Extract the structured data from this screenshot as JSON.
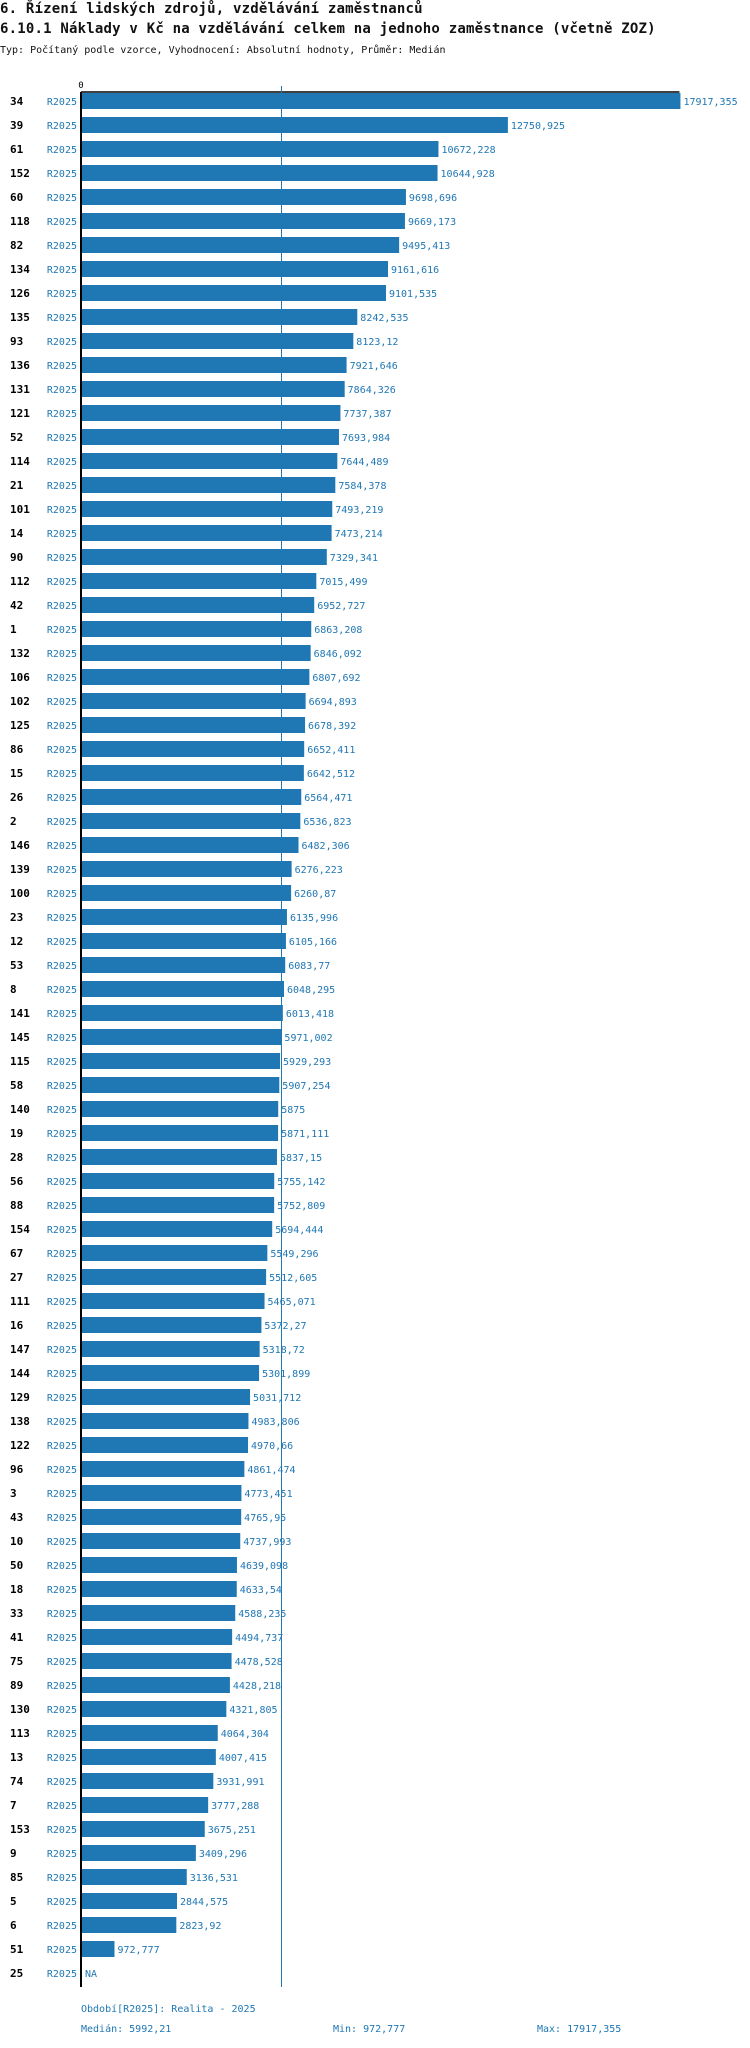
{
  "header": {
    "section_title": "6. Řízení lidských zdrojů, vzdělávání zaměstnanců",
    "indicator_title": "6.10.1 Náklady v Kč na vzdělávání celkem na jednoho zaměstnance (včetně ZOZ)",
    "meta": "Typ: Počítaný podle vzorce, Vyhodnocení: Absolutní hodnoty, Průměr: Medián"
  },
  "colors": {
    "bar": "#1f77b4",
    "axis": "#000000",
    "label": "#1f77b4",
    "id": "#000000"
  },
  "chart_data": {
    "type": "bar",
    "orientation": "horizontal",
    "axis_zero_label": "0",
    "median": 5992.21,
    "rows": [
      {
        "id": "34",
        "period": "R2025",
        "value": 17917.355,
        "label": "17917,355"
      },
      {
        "id": "39",
        "period": "R2025",
        "value": 12750.925,
        "label": "12750,925"
      },
      {
        "id": "61",
        "period": "R2025",
        "value": 10672.228,
        "label": "10672,228"
      },
      {
        "id": "152",
        "period": "R2025",
        "value": 10644.928,
        "label": "10644,928"
      },
      {
        "id": "60",
        "period": "R2025",
        "value": 9698.696,
        "label": "9698,696"
      },
      {
        "id": "118",
        "period": "R2025",
        "value": 9669.173,
        "label": "9669,173"
      },
      {
        "id": "82",
        "period": "R2025",
        "value": 9495.413,
        "label": "9495,413"
      },
      {
        "id": "134",
        "period": "R2025",
        "value": 9161.616,
        "label": "9161,616"
      },
      {
        "id": "126",
        "period": "R2025",
        "value": 9101.535,
        "label": "9101,535"
      },
      {
        "id": "135",
        "period": "R2025",
        "value": 8242.535,
        "label": "8242,535"
      },
      {
        "id": "93",
        "period": "R2025",
        "value": 8123.12,
        "label": "8123,12"
      },
      {
        "id": "136",
        "period": "R2025",
        "value": 7921.646,
        "label": "7921,646"
      },
      {
        "id": "131",
        "period": "R2025",
        "value": 7864.326,
        "label": "7864,326"
      },
      {
        "id": "121",
        "period": "R2025",
        "value": 7737.387,
        "label": "7737,387"
      },
      {
        "id": "52",
        "period": "R2025",
        "value": 7693.984,
        "label": "7693,984"
      },
      {
        "id": "114",
        "period": "R2025",
        "value": 7644.489,
        "label": "7644,489"
      },
      {
        "id": "21",
        "period": "R2025",
        "value": 7584.378,
        "label": "7584,378"
      },
      {
        "id": "101",
        "period": "R2025",
        "value": 7493.219,
        "label": "7493,219"
      },
      {
        "id": "14",
        "period": "R2025",
        "value": 7473.214,
        "label": "7473,214"
      },
      {
        "id": "90",
        "period": "R2025",
        "value": 7329.341,
        "label": "7329,341"
      },
      {
        "id": "112",
        "period": "R2025",
        "value": 7015.499,
        "label": "7015,499"
      },
      {
        "id": "42",
        "period": "R2025",
        "value": 6952.727,
        "label": "6952,727"
      },
      {
        "id": "1",
        "period": "R2025",
        "value": 6863.208,
        "label": "6863,208"
      },
      {
        "id": "132",
        "period": "R2025",
        "value": 6846.092,
        "label": "6846,092"
      },
      {
        "id": "106",
        "period": "R2025",
        "value": 6807.692,
        "label": "6807,692"
      },
      {
        "id": "102",
        "period": "R2025",
        "value": 6694.893,
        "label": "6694,893"
      },
      {
        "id": "125",
        "period": "R2025",
        "value": 6678.392,
        "label": "6678,392"
      },
      {
        "id": "86",
        "period": "R2025",
        "value": 6652.411,
        "label": "6652,411"
      },
      {
        "id": "15",
        "period": "R2025",
        "value": 6642.512,
        "label": "6642,512"
      },
      {
        "id": "26",
        "period": "R2025",
        "value": 6564.471,
        "label": "6564,471"
      },
      {
        "id": "2",
        "period": "R2025",
        "value": 6536.823,
        "label": "6536,823"
      },
      {
        "id": "146",
        "period": "R2025",
        "value": 6482.306,
        "label": "6482,306"
      },
      {
        "id": "139",
        "period": "R2025",
        "value": 6276.223,
        "label": "6276,223"
      },
      {
        "id": "100",
        "period": "R2025",
        "value": 6260.87,
        "label": "6260,87"
      },
      {
        "id": "23",
        "period": "R2025",
        "value": 6135.996,
        "label": "6135,996"
      },
      {
        "id": "12",
        "period": "R2025",
        "value": 6105.166,
        "label": "6105,166"
      },
      {
        "id": "53",
        "period": "R2025",
        "value": 6083.77,
        "label": "6083,77"
      },
      {
        "id": "8",
        "period": "R2025",
        "value": 6048.295,
        "label": "6048,295"
      },
      {
        "id": "141",
        "period": "R2025",
        "value": 6013.418,
        "label": "6013,418"
      },
      {
        "id": "145",
        "period": "R2025",
        "value": 5971.002,
        "label": "5971,002"
      },
      {
        "id": "115",
        "period": "R2025",
        "value": 5929.293,
        "label": "5929,293"
      },
      {
        "id": "58",
        "period": "R2025",
        "value": 5907.254,
        "label": "5907,254"
      },
      {
        "id": "140",
        "period": "R2025",
        "value": 5875,
        "label": "5875"
      },
      {
        "id": "19",
        "period": "R2025",
        "value": 5871.111,
        "label": "5871,111"
      },
      {
        "id": "28",
        "period": "R2025",
        "value": 5837.15,
        "label": "5837,15"
      },
      {
        "id": "56",
        "period": "R2025",
        "value": 5755.142,
        "label": "5755,142"
      },
      {
        "id": "88",
        "period": "R2025",
        "value": 5752.809,
        "label": "5752,809"
      },
      {
        "id": "154",
        "period": "R2025",
        "value": 5694.444,
        "label": "5694,444"
      },
      {
        "id": "67",
        "period": "R2025",
        "value": 5549.296,
        "label": "5549,296"
      },
      {
        "id": "27",
        "period": "R2025",
        "value": 5512.605,
        "label": "5512,605"
      },
      {
        "id": "111",
        "period": "R2025",
        "value": 5465.071,
        "label": "5465,071"
      },
      {
        "id": "16",
        "period": "R2025",
        "value": 5372.27,
        "label": "5372,27"
      },
      {
        "id": "147",
        "period": "R2025",
        "value": 5318.72,
        "label": "5318,72"
      },
      {
        "id": "144",
        "period": "R2025",
        "value": 5301.899,
        "label": "5301,899"
      },
      {
        "id": "129",
        "period": "R2025",
        "value": 5031.712,
        "label": "5031,712"
      },
      {
        "id": "138",
        "period": "R2025",
        "value": 4983.806,
        "label": "4983,806"
      },
      {
        "id": "122",
        "period": "R2025",
        "value": 4970.66,
        "label": "4970,66"
      },
      {
        "id": "96",
        "period": "R2025",
        "value": 4861.474,
        "label": "4861,474"
      },
      {
        "id": "3",
        "period": "R2025",
        "value": 4773.451,
        "label": "4773,451"
      },
      {
        "id": "43",
        "period": "R2025",
        "value": 4765.95,
        "label": "4765,95"
      },
      {
        "id": "10",
        "period": "R2025",
        "value": 4737.993,
        "label": "4737,993"
      },
      {
        "id": "50",
        "period": "R2025",
        "value": 4639.098,
        "label": "4639,098"
      },
      {
        "id": "18",
        "period": "R2025",
        "value": 4633.54,
        "label": "4633,54"
      },
      {
        "id": "33",
        "period": "R2025",
        "value": 4588.235,
        "label": "4588,235"
      },
      {
        "id": "41",
        "period": "R2025",
        "value": 4494.737,
        "label": "4494,737"
      },
      {
        "id": "75",
        "period": "R2025",
        "value": 4478.528,
        "label": "4478,528"
      },
      {
        "id": "89",
        "period": "R2025",
        "value": 4428.218,
        "label": "4428,218"
      },
      {
        "id": "130",
        "period": "R2025",
        "value": 4321.805,
        "label": "4321,805"
      },
      {
        "id": "113",
        "period": "R2025",
        "value": 4064.304,
        "label": "4064,304"
      },
      {
        "id": "13",
        "period": "R2025",
        "value": 4007.415,
        "label": "4007,415"
      },
      {
        "id": "74",
        "period": "R2025",
        "value": 3931.991,
        "label": "3931,991"
      },
      {
        "id": "7",
        "period": "R2025",
        "value": 3777.288,
        "label": "3777,288"
      },
      {
        "id": "153",
        "period": "R2025",
        "value": 3675.251,
        "label": "3675,251"
      },
      {
        "id": "9",
        "period": "R2025",
        "value": 3409.296,
        "label": "3409,296"
      },
      {
        "id": "85",
        "period": "R2025",
        "value": 3136.531,
        "label": "3136,531"
      },
      {
        "id": "5",
        "period": "R2025",
        "value": 2844.575,
        "label": "2844,575"
      },
      {
        "id": "6",
        "period": "R2025",
        "value": 2823.92,
        "label": "2823,92"
      },
      {
        "id": "51",
        "period": "R2025",
        "value": 972.777,
        "label": "972,777"
      },
      {
        "id": "25",
        "period": "R2025",
        "value": null,
        "label": "NA"
      }
    ]
  },
  "footer": {
    "period_legend": "Období[R2025]: Realita - 2025",
    "median": "Medián: 5992,21",
    "min": "Min: 972,777",
    "max": "Max: 17917,355"
  }
}
